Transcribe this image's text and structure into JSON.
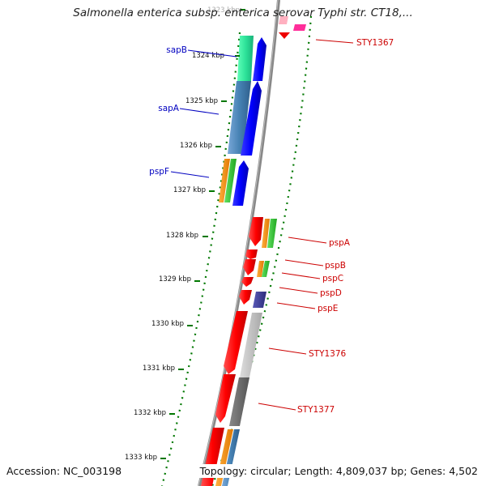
{
  "title": "Salmonella enterica subsp. enterica serovar Typhi str. CT18,...",
  "footer": {
    "accession": "Accession: NC_003198",
    "summary": "Topology: circular; Length: 4,809,037 bp; Genes: 4,502"
  },
  "ticks": [
    "1323 kbp",
    "1324 kbp",
    "1325 kbp",
    "1326 kbp",
    "1327 kbp",
    "1328 kbp",
    "1329 kbp",
    "1330 kbp",
    "1331 kbp",
    "1332 kbp",
    "1333 kbp"
  ],
  "gene_labels": [
    "sapB",
    "sapA",
    "pspF",
    "STY1367",
    "pspA",
    "pspB",
    "pspC",
    "pspD",
    "pspE",
    "STY1376",
    "STY1377"
  ],
  "colors": {
    "label_left": "#0000c0",
    "label_right": "#cc0000",
    "tick": "#111111",
    "dots": "#007700",
    "backbone": "#888888"
  }
}
